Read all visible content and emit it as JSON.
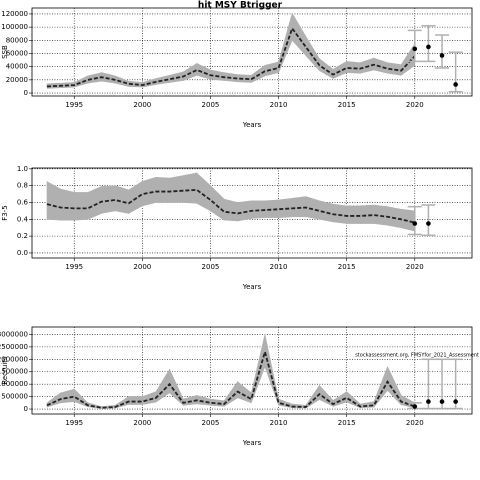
{
  "chart_data": [
    {
      "type": "line",
      "title": "hit MSY Btrigger",
      "xlabel": "Years",
      "ylabel": "SSB",
      "x": [
        1993,
        1994,
        1995,
        1996,
        1997,
        1998,
        1999,
        2000,
        2001,
        2002,
        2003,
        2004,
        2005,
        2006,
        2007,
        2008,
        2009,
        2010,
        2011,
        2012,
        2013,
        2014,
        2015,
        2016,
        2017,
        2018,
        2019,
        2020
      ],
      "values": [
        10000,
        11000,
        12000,
        20000,
        24000,
        20000,
        14000,
        12000,
        17000,
        21000,
        25000,
        35000,
        27000,
        24000,
        22000,
        21000,
        33000,
        38000,
        98000,
        70000,
        42000,
        28000,
        38000,
        37000,
        43000,
        37000,
        34000,
        56000
      ],
      "lower": [
        7000,
        8000,
        9000,
        15000,
        18000,
        15000,
        10000,
        9000,
        13000,
        16000,
        19000,
        27000,
        21000,
        19000,
        17000,
        16000,
        26000,
        31000,
        80000,
        57000,
        34000,
        22000,
        31000,
        30000,
        35000,
        30000,
        27000,
        42000
      ],
      "upper": [
        14000,
        15000,
        16000,
        26000,
        31000,
        26000,
        18000,
        16000,
        22000,
        27000,
        32000,
        45000,
        35000,
        31000,
        28000,
        27000,
        42000,
        47000,
        121000,
        86000,
        52000,
        36000,
        48000,
        46000,
        53000,
        46000,
        43000,
        75000
      ],
      "proj_x": [
        2020,
        2021,
        2022,
        2023
      ],
      "proj_values": [
        67000,
        70000,
        57000,
        13000
      ],
      "proj_lower": [
        48000,
        48000,
        38000,
        2000
      ],
      "proj_upper": [
        95000,
        102000,
        88000,
        62000
      ],
      "xlim": [
        1991.9,
        2024.2
      ],
      "xticks": [
        1995,
        2000,
        2005,
        2010,
        2015,
        2020
      ],
      "ylim": [
        -4500,
        129000
      ],
      "yticks": [
        0,
        20000,
        40000,
        60000,
        80000,
        100000,
        120000
      ],
      "color": "#222222",
      "band_color": "#b0b0b0",
      "proj_color": "#b0b0b0",
      "grid": true
    },
    {
      "type": "line",
      "xlabel": "Years",
      "ylabel": "F3-5",
      "x": [
        1993,
        1994,
        1995,
        1996,
        1997,
        1998,
        1999,
        2000,
        2001,
        2002,
        2003,
        2004,
        2005,
        2006,
        2007,
        2008,
        2009,
        2010,
        2011,
        2012,
        2013,
        2014,
        2015,
        2016,
        2017,
        2018,
        2019,
        2020
      ],
      "values": [
        0.58,
        0.54,
        0.53,
        0.53,
        0.61,
        0.63,
        0.59,
        0.7,
        0.73,
        0.73,
        0.74,
        0.75,
        0.63,
        0.49,
        0.47,
        0.5,
        0.51,
        0.52,
        0.53,
        0.54,
        0.5,
        0.46,
        0.44,
        0.44,
        0.45,
        0.43,
        0.4,
        0.36
      ],
      "lower": [
        0.4,
        0.39,
        0.39,
        0.4,
        0.47,
        0.5,
        0.47,
        0.56,
        0.6,
        0.6,
        0.6,
        0.59,
        0.5,
        0.39,
        0.38,
        0.41,
        0.42,
        0.42,
        0.43,
        0.43,
        0.4,
        0.37,
        0.35,
        0.35,
        0.35,
        0.33,
        0.3,
        0.26
      ],
      "upper": [
        0.85,
        0.76,
        0.72,
        0.72,
        0.79,
        0.8,
        0.75,
        0.85,
        0.9,
        0.89,
        0.92,
        0.95,
        0.8,
        0.64,
        0.6,
        0.62,
        0.62,
        0.63,
        0.65,
        0.67,
        0.62,
        0.58,
        0.56,
        0.56,
        0.57,
        0.55,
        0.52,
        0.5
      ],
      "proj_x": [
        2020,
        2021
      ],
      "proj_values": [
        0.35,
        0.35
      ],
      "proj_lower": [
        0.22,
        0.21
      ],
      "proj_upper": [
        0.55,
        0.57
      ],
      "xlim": [
        1991.9,
        2024.2
      ],
      "xticks": [
        1995,
        2000,
        2005,
        2010,
        2015,
        2020
      ],
      "ylim": [
        -0.06,
        1.01
      ],
      "yticks": [
        {
          "value": 0,
          "label": "0.0"
        },
        0.2,
        0.4,
        0.6,
        0.8,
        {
          "value": 1,
          "label": "1.0"
        }
      ],
      "color": "#222222",
      "band_color": "#b0b0b0",
      "proj_color": "#b0b0b0",
      "grid": true
    },
    {
      "type": "line",
      "xlabel": "Years",
      "ylabel": "Recruits",
      "annotation": "stockassessment.org, FMSYfor_2021_Assessment",
      "x": [
        1993,
        1994,
        1995,
        1996,
        1997,
        1998,
        1999,
        2000,
        2001,
        2002,
        2003,
        2004,
        2005,
        2006,
        2007,
        2008,
        2009,
        2010,
        2011,
        2012,
        2013,
        2014,
        2015,
        2016,
        2017,
        2018,
        2019,
        2020
      ],
      "values": [
        150000,
        400000,
        500000,
        150000,
        50000,
        80000,
        300000,
        300000,
        450000,
        1000000,
        250000,
        350000,
        250000,
        200000,
        700000,
        400000,
        2300000,
        250000,
        100000,
        80000,
        600000,
        200000,
        450000,
        100000,
        150000,
        1100000,
        300000,
        100000
      ],
      "lower": [
        80000,
        250000,
        300000,
        90000,
        20000,
        40000,
        180000,
        180000,
        280000,
        650000,
        150000,
        210000,
        150000,
        110000,
        450000,
        250000,
        1700000,
        150000,
        50000,
        40000,
        380000,
        110000,
        280000,
        50000,
        80000,
        750000,
        170000,
        40000
      ],
      "upper": [
        250000,
        650000,
        800000,
        250000,
        100000,
        150000,
        500000,
        500000,
        700000,
        1600000,
        400000,
        550000,
        400000,
        330000,
        1100000,
        650000,
        3000000,
        400000,
        200000,
        150000,
        950000,
        350000,
        700000,
        200000,
        300000,
        1700000,
        550000,
        250000
      ],
      "proj_x": [
        2020,
        2021,
        2022,
        2023
      ],
      "proj_values": [
        100000,
        300000,
        300000,
        300000
      ],
      "proj_lower": [
        20000,
        20000,
        20000,
        20000
      ],
      "proj_upper": [
        250000,
        2000000,
        2000000,
        2000000
      ],
      "xlim": [
        1991.9,
        2024.2
      ],
      "xticks": [
        1995,
        2000,
        2005,
        2010,
        2015,
        2020
      ],
      "ylim": [
        -200000,
        3300000
      ],
      "yticks": [
        0,
        500000,
        1000000,
        1500000,
        2000000,
        2500000,
        3000000
      ],
      "color": "#222222",
      "band_color": "#b0b0b0",
      "proj_color": "#b0b0b0",
      "grid": true
    }
  ]
}
